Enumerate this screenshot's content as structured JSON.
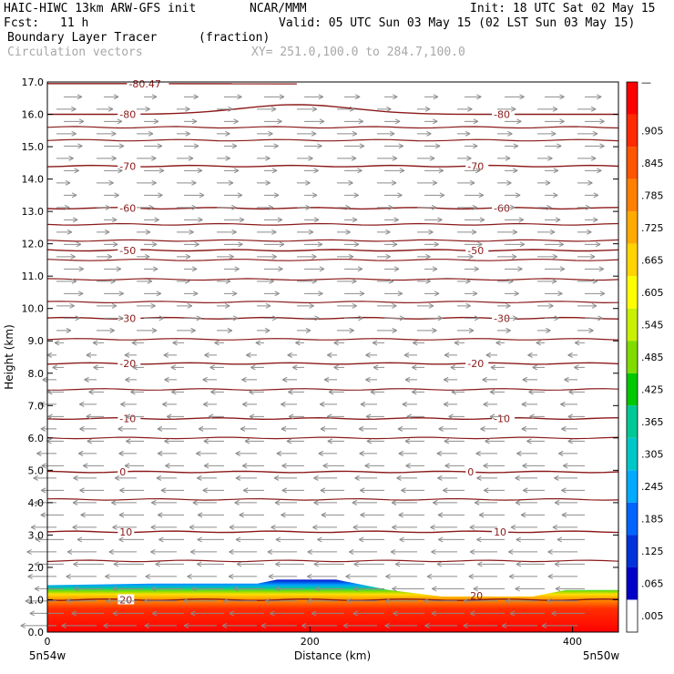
{
  "header": {
    "model": "HAIC-HIWC 13km ARW-GFS init",
    "org": "NCAR/MMM",
    "init": "Init: 18 UTC Sat 02 May 15",
    "fcst_label": "Fcst:",
    "fcst_value": "11 h",
    "valid": "Valid: 05 UTC Sun 03 May 15 (02 LST Sun 03 May 15)",
    "field_name": "Boundary Layer Tracer",
    "field_units": "(fraction)",
    "vector_label": "Circulation vectors",
    "xy_range": "XY= 251.0,100.0 to 284.7,100.0"
  },
  "colors": {
    "contour": "#8b1a1a",
    "vector": "#8c8c8c"
  },
  "chart_data": {
    "type": "heatmap",
    "title": "Boundary Layer Tracer (fraction)",
    "xlabel": "Distance (km)",
    "ylabel": "Height (km)",
    "xlim": [
      0,
      435
    ],
    "ylim": [
      0,
      17
    ],
    "x_ticks": [
      "0",
      "200",
      "400"
    ],
    "y_ticks": [
      "0.0",
      "1.0",
      "2.0",
      "3.0",
      "4.0",
      "5.0",
      "6.0",
      "7.0",
      "8.0",
      "9.0",
      "10.0",
      "11.0",
      "12.0",
      "13.0",
      "14.0",
      "15.0",
      "16.0",
      "17.0"
    ],
    "x_endpoint_labels": {
      "left": "5n54w",
      "right": "5n50w"
    },
    "colorbar": {
      "labels": [
        "—",
        ".905",
        ".845",
        ".785",
        ".725",
        ".665",
        ".605",
        ".545",
        ".485",
        ".425",
        ".365",
        ".305",
        ".245",
        ".185",
        ".125",
        ".065",
        ".005"
      ],
      "colors": [
        "#ff0000",
        "#ff2a00",
        "#ff5500",
        "#ff8000",
        "#ffaa00",
        "#ffd400",
        "#ffff00",
        "#c8f000",
        "#80dc00",
        "#00c800",
        "#00c896",
        "#00c8c8",
        "#00aaff",
        "#0064ff",
        "#0032dc",
        "#0000c8",
        "#ffffff"
      ]
    },
    "tracer_top_km": [
      {
        "x": 0,
        "y": 1.45
      },
      {
        "x": 80,
        "y": 1.5
      },
      {
        "x": 160,
        "y": 1.5
      },
      {
        "x": 175,
        "y": 1.62
      },
      {
        "x": 220,
        "y": 1.62
      },
      {
        "x": 260,
        "y": 1.3
      },
      {
        "x": 300,
        "y": 1.1
      },
      {
        "x": 370,
        "y": 1.1
      },
      {
        "x": 395,
        "y": 1.3
      },
      {
        "x": 435,
        "y": 1.3
      }
    ],
    "temperature_contours": [
      {
        "label": "-80.47",
        "y": 16.95
      },
      {
        "label": "-80",
        "y": 16.0
      },
      {
        "label": "-70",
        "y": 14.4
      },
      {
        "label": "-60",
        "y": 13.1
      },
      {
        "label": "-50",
        "y": 11.8
      },
      {
        "label": "-30",
        "y": 9.7
      },
      {
        "label": "-20",
        "y": 8.3
      },
      {
        "label": "-10",
        "y": 6.6
      },
      {
        "label": "0",
        "y": 4.95
      },
      {
        "label": "10",
        "y": 3.1
      },
      {
        "label": "20",
        "y": 1.0
      }
    ],
    "unlabeled_contour_levels_km": [
      15.6,
      15.2,
      12.6,
      12.1,
      11.5,
      10.9,
      10.2,
      9.05,
      7.5,
      6.0,
      4.1,
      2.2
    ],
    "vectors": {
      "upper_direction": "east",
      "lower_direction": "west",
      "transition_height_km": 9.3
    }
  }
}
